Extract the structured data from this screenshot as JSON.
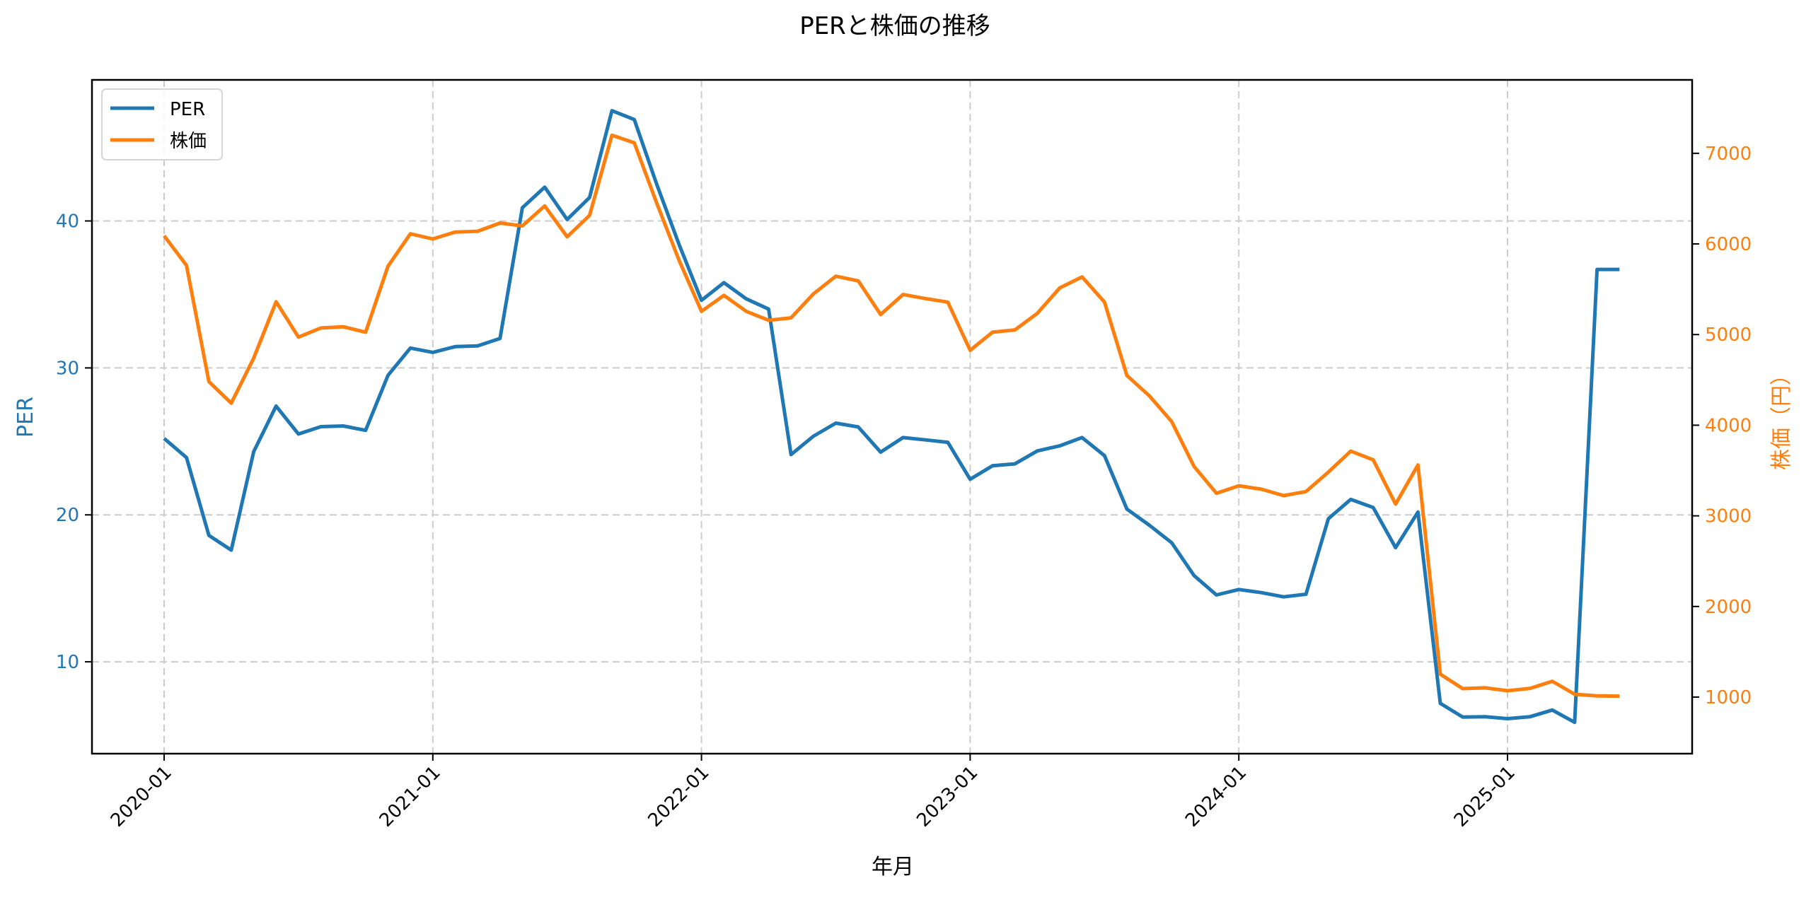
{
  "figure": {
    "title": "PERと株価の推移",
    "xlabel": "年月",
    "ylabel_left": "PER",
    "ylabel_right": "株価（円）"
  },
  "legend": {
    "items": [
      {
        "label": "PER",
        "color": "#1f77b4"
      },
      {
        "label": "株価",
        "color": "#ff7f0e"
      }
    ]
  },
  "colors": {
    "per": "#1f77b4",
    "price": "#ff7f0e",
    "grid": "#cccccc",
    "axis": "#000000"
  },
  "chart_data": {
    "type": "line",
    "title": "PERと株価の推移",
    "xlabel": "年月",
    "ylabel": "PER",
    "ylabel_secondary": "株価（円）",
    "x_tick_labels": [
      "2020-01",
      "2021-01",
      "2022-01",
      "2023-01",
      "2024-01",
      "2025-01"
    ],
    "y_ticks_left": [
      10,
      20,
      30,
      40
    ],
    "y_ticks_right": [
      1000,
      2000,
      3000,
      4000,
      5000,
      6000,
      7000
    ],
    "ylim": [
      3.75,
      49.6
    ],
    "ylim_secondary": [
      376,
      7810
    ],
    "grid": true,
    "legend_position": "upper left",
    "x": [
      "2020-01",
      "2020-02",
      "2020-03",
      "2020-04",
      "2020-05",
      "2020-06",
      "2020-07",
      "2020-08",
      "2020-09",
      "2020-10",
      "2020-11",
      "2020-12",
      "2021-01",
      "2021-02",
      "2021-03",
      "2021-04",
      "2021-05",
      "2021-06",
      "2021-07",
      "2021-08",
      "2021-09",
      "2021-10",
      "2021-11",
      "2021-12",
      "2022-01",
      "2022-02",
      "2022-03",
      "2022-04",
      "2022-05",
      "2022-06",
      "2022-07",
      "2022-08",
      "2022-09",
      "2022-10",
      "2022-11",
      "2022-12",
      "2023-01",
      "2023-02",
      "2023-03",
      "2023-04",
      "2023-05",
      "2023-06",
      "2023-07",
      "2023-08",
      "2023-09",
      "2023-10",
      "2023-11",
      "2023-12",
      "2024-01",
      "2024-02",
      "2024-03",
      "2024-04",
      "2024-05",
      "2024-06",
      "2024-07",
      "2024-08",
      "2024-09",
      "2024-10",
      "2024-11",
      "2024-12",
      "2025-01",
      "2025-02",
      "2025-03",
      "2025-04",
      "2025-05",
      "2025-06"
    ],
    "series": [
      {
        "name": "PER",
        "axis": "left",
        "values": [
          25.2,
          23.9,
          18.6,
          17.6,
          24.3,
          27.4,
          25.5,
          26.0,
          26.05,
          25.75,
          29.5,
          31.35,
          31.06,
          31.45,
          31.5,
          32.0,
          40.9,
          42.3,
          40.1,
          41.6,
          47.5,
          46.9,
          42.5,
          38.4,
          34.6,
          35.8,
          34.7,
          34.0,
          24.1,
          25.35,
          26.24,
          25.98,
          24.27,
          25.26,
          25.1,
          24.94,
          22.42,
          23.34,
          23.47,
          24.35,
          24.7,
          25.26,
          24.03,
          20.39,
          19.3,
          18.1,
          15.87,
          14.55,
          14.92,
          14.71,
          14.42,
          14.6,
          19.74,
          21.05,
          20.5,
          17.77,
          20.19,
          7.17,
          6.24,
          6.26,
          6.13,
          6.26,
          6.72,
          5.88,
          36.7,
          36.7
        ]
      },
      {
        "name": "株価",
        "axis": "right",
        "values": [
          6090,
          5763,
          4481,
          4243,
          4740,
          5362,
          4972,
          5073,
          5086,
          5026,
          5755,
          6112,
          6055,
          6131,
          6140,
          6230,
          6199,
          6419,
          6078,
          6315,
          7199,
          7116,
          6450,
          5820,
          5256,
          5432,
          5256,
          5158,
          5184,
          5449,
          5644,
          5592,
          5221,
          5442,
          5397,
          5358,
          4826,
          5026,
          5052,
          5234,
          5514,
          5636,
          5358,
          4548,
          4325,
          4039,
          3545,
          3249,
          3332,
          3294,
          3223,
          3268,
          3483,
          3714,
          3618,
          3130,
          3561,
          1253,
          1094,
          1102,
          1070,
          1096,
          1175,
          1031,
          1013,
          1010
        ]
      }
    ]
  }
}
